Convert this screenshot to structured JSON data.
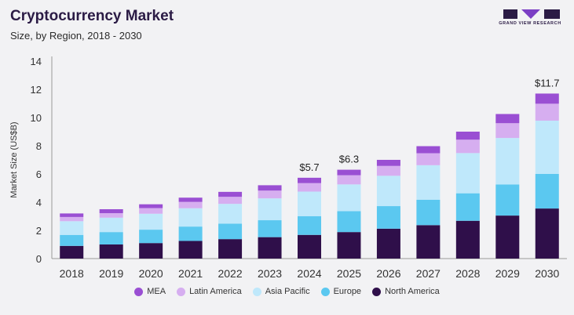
{
  "header": {
    "title": "Cryptocurrency Market",
    "subtitle": "Size, by Region, 2018 - 2030",
    "logo_text": "GRAND VIEW RESEARCH"
  },
  "chart_data": {
    "type": "bar",
    "stacked": true,
    "categories": [
      "2018",
      "2019",
      "2020",
      "2021",
      "2022",
      "2023",
      "2024",
      "2025",
      "2026",
      "2027",
      "2028",
      "2029",
      "2030"
    ],
    "ylabel": "Market Size (US$B)",
    "xlabel": "",
    "ylim": [
      0,
      14
    ],
    "yticks": [
      0,
      2,
      4,
      6,
      8,
      10,
      12,
      14
    ],
    "grid": false,
    "legend_position": "bottom",
    "series": [
      {
        "name": "North America",
        "color": "#2f0f4a",
        "values": [
          0.9,
          1.0,
          1.1,
          1.25,
          1.38,
          1.52,
          1.68,
          1.88,
          2.12,
          2.37,
          2.68,
          3.05,
          3.55
        ]
      },
      {
        "name": "Europe",
        "color": "#5bc8f0",
        "values": [
          0.78,
          0.88,
          0.95,
          1.02,
          1.1,
          1.2,
          1.32,
          1.48,
          1.6,
          1.8,
          1.95,
          2.2,
          2.45
        ]
      },
      {
        "name": "Asia Pacific",
        "color": "#bfe8fb",
        "values": [
          0.97,
          1.02,
          1.13,
          1.3,
          1.4,
          1.55,
          1.75,
          1.9,
          2.15,
          2.45,
          2.85,
          3.3,
          3.78
        ]
      },
      {
        "name": "Latin America",
        "color": "#d6aef0",
        "values": [
          0.3,
          0.32,
          0.4,
          0.45,
          0.5,
          0.55,
          0.6,
          0.65,
          0.7,
          0.85,
          0.95,
          1.05,
          1.2
        ]
      },
      {
        "name": "MEA",
        "color": "#9a4fd3",
        "values": [
          0.25,
          0.28,
          0.27,
          0.3,
          0.35,
          0.38,
          0.38,
          0.39,
          0.43,
          0.5,
          0.57,
          0.65,
          0.72
        ]
      }
    ],
    "annotations": [
      {
        "category": "2024",
        "text": "$5.7"
      },
      {
        "category": "2025",
        "text": "$6.3"
      },
      {
        "category": "2030",
        "text": "$11.7"
      }
    ]
  },
  "legend": {
    "items": [
      {
        "label": "MEA",
        "color": "#9a4fd3"
      },
      {
        "label": "Latin America",
        "color": "#d6aef0"
      },
      {
        "label": "Asia Pacific",
        "color": "#bfe8fb"
      },
      {
        "label": "Europe",
        "color": "#5bc8f0"
      },
      {
        "label": "North America",
        "color": "#2f0f4a"
      }
    ]
  }
}
